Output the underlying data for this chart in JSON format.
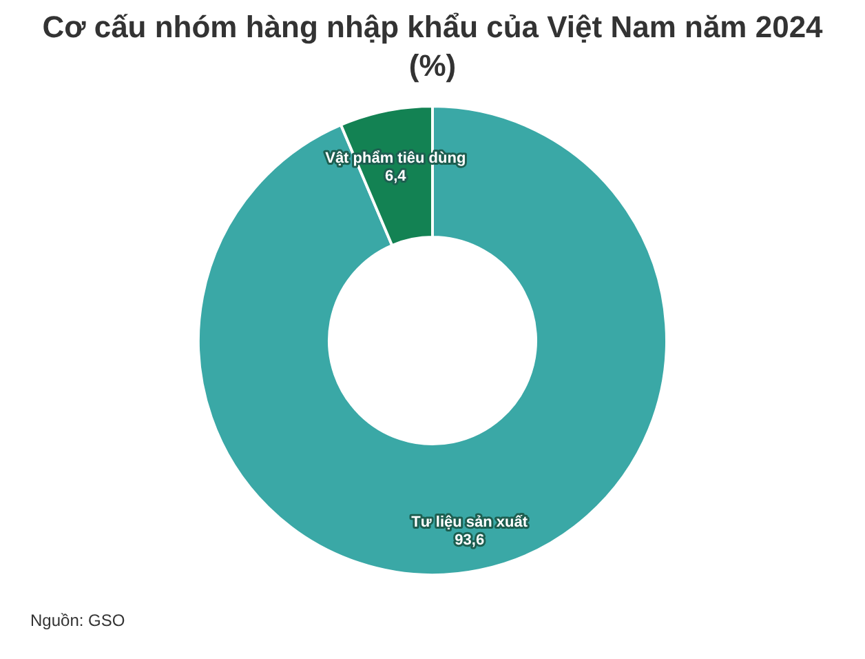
{
  "chart_data": {
    "type": "donut",
    "title": "Cơ cấu nhóm hàng nhập khẩu của Việt Nam năm 2024 (%)",
    "categories": [
      "Tư liệu sản xuất",
      "Vật phẩm tiêu dùng"
    ],
    "values": [
      93.6,
      6.4
    ],
    "colors": [
      "#3aa8a6",
      "#138253"
    ],
    "value_labels": [
      "93,6",
      "6,4"
    ],
    "annotations": [
      "Nguồn: GSO"
    ]
  }
}
